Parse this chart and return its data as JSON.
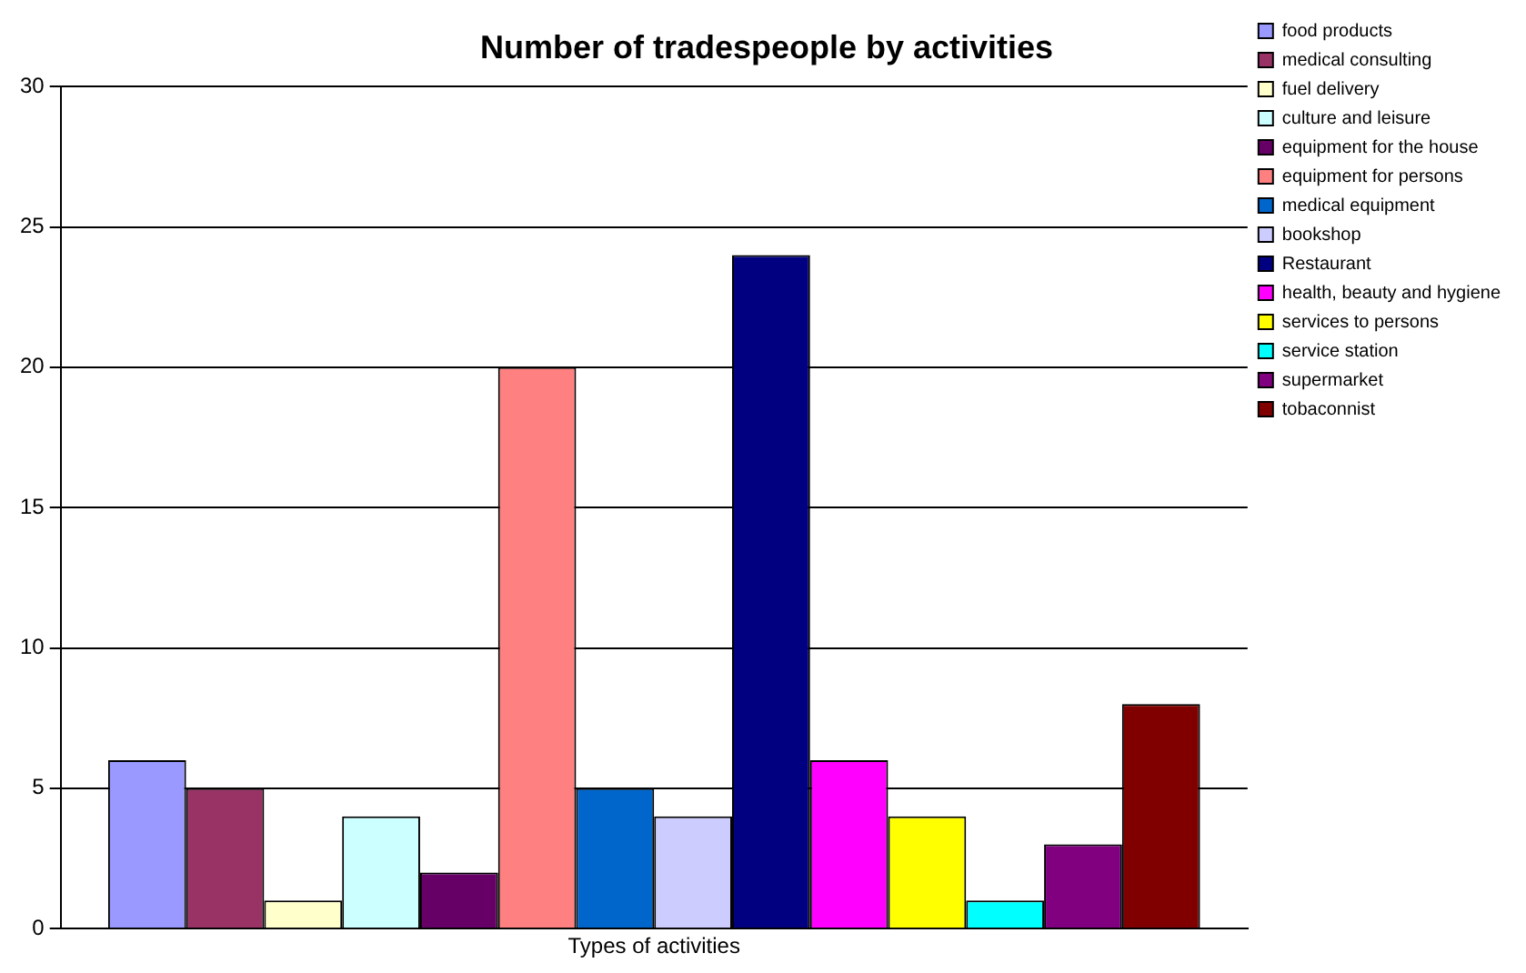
{
  "chart_data": {
    "type": "bar",
    "title": "Number of tradespeople by activities",
    "categories": [
      "Types of activities"
    ],
    "series": [
      {
        "name": "food products",
        "color": "#9999ff",
        "values": [
          6
        ]
      },
      {
        "name": "medical consulting",
        "color": "#993366",
        "values": [
          5
        ]
      },
      {
        "name": "fuel delivery",
        "color": "#ffffcc",
        "values": [
          1
        ]
      },
      {
        "name": "culture and leisure",
        "color": "#ccffff",
        "values": [
          4
        ]
      },
      {
        "name": "equipment for the house",
        "color": "#660066",
        "values": [
          2
        ]
      },
      {
        "name": "equipment for persons",
        "color": "#ff8080",
        "values": [
          20
        ]
      },
      {
        "name": "medical equipment",
        "color": "#0066cc",
        "values": [
          5
        ]
      },
      {
        "name": "bookshop",
        "color": "#ccccff",
        "values": [
          4
        ]
      },
      {
        "name": "Restaurant",
        "color": "#000080",
        "values": [
          24
        ]
      },
      {
        "name": "health, beauty and hygiene",
        "color": "#ff00ff",
        "values": [
          6
        ]
      },
      {
        "name": "services to persons",
        "color": "#ffff00",
        "values": [
          4
        ]
      },
      {
        "name": "service station",
        "color": "#00ffff",
        "values": [
          1
        ]
      },
      {
        "name": "supermarket",
        "color": "#800080",
        "values": [
          3
        ]
      },
      {
        "name": "tobaconnist",
        "color": "#800000",
        "values": [
          8
        ]
      }
    ],
    "ylim": [
      0,
      30
    ],
    "yticks": [
      0,
      5,
      10,
      15,
      20,
      25,
      30
    ],
    "grid": "y",
    "legend": "top right"
  }
}
